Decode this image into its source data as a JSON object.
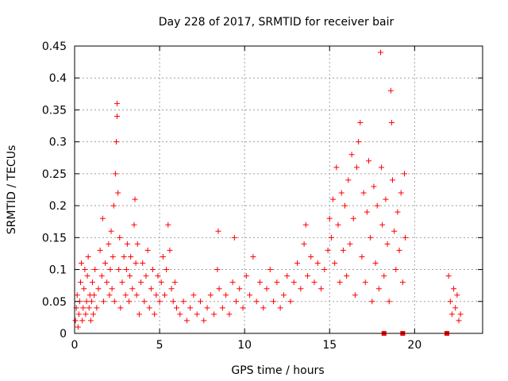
{
  "chart_data": {
    "type": "scatter",
    "title": "Day 228 of 2017, SRMTID for receiver bair",
    "xlabel": "GPS time / hours",
    "ylabel": "SRMTID / TECUs",
    "xlim": [
      0,
      24
    ],
    "ylim": [
      0,
      0.45
    ],
    "x_ticks": [
      0,
      5,
      10,
      15,
      20
    ],
    "x_tick_labels": [
      "0",
      "5",
      "10",
      "15",
      "20"
    ],
    "y_ticks": [
      0,
      0.05,
      0.1,
      0.15,
      0.2,
      0.25,
      0.3,
      0.35,
      0.4,
      0.45
    ],
    "y_tick_labels": [
      "0",
      "0.05",
      "0.1",
      "0.15",
      "0.2",
      "0.25",
      "0.3",
      "0.35",
      "0.4",
      "0.45"
    ],
    "grid": true,
    "legend": "none",
    "marker": "+",
    "color": "#ff0000",
    "series": [
      {
        "points": [
          [
            0.05,
            0.02
          ],
          [
            0.1,
            0.04
          ],
          [
            0.15,
            0.06
          ],
          [
            0.2,
            0.01
          ],
          [
            0.25,
            0.03
          ],
          [
            0.3,
            0.05
          ],
          [
            0.35,
            0.08
          ],
          [
            0.4,
            0.11
          ],
          [
            0.45,
            0.02
          ],
          [
            0.5,
            0.04
          ],
          [
            0.55,
            0.07
          ],
          [
            0.6,
            0.1
          ],
          [
            0.65,
            0.03
          ],
          [
            0.7,
            0.05
          ],
          [
            0.75,
            0.09
          ],
          [
            0.8,
            0.12
          ],
          [
            0.85,
            0.04
          ],
          [
            0.9,
            0.06
          ],
          [
            0.95,
            0.02
          ],
          [
            1.0,
            0.05
          ],
          [
            1.05,
            0.08
          ],
          [
            1.1,
            0.03
          ],
          [
            1.15,
            0.06
          ],
          [
            1.2,
            0.1
          ],
          [
            1.3,
            0.04
          ],
          [
            1.4,
            0.07
          ],
          [
            1.5,
            0.13
          ],
          [
            1.6,
            0.09
          ],
          [
            1.65,
            0.18
          ],
          [
            1.7,
            0.05
          ],
          [
            1.8,
            0.11
          ],
          [
            1.9,
            0.08
          ],
          [
            2.0,
            0.14
          ],
          [
            2.05,
            0.06
          ],
          [
            2.1,
            0.1
          ],
          [
            2.15,
            0.16
          ],
          [
            2.2,
            0.07
          ],
          [
            2.25,
            0.12
          ],
          [
            2.3,
            0.2
          ],
          [
            2.35,
            0.05
          ],
          [
            2.4,
            0.25
          ],
          [
            2.45,
            0.3
          ],
          [
            2.5,
            0.36
          ],
          [
            2.5,
            0.34
          ],
          [
            2.55,
            0.22
          ],
          [
            2.6,
            0.1
          ],
          [
            2.65,
            0.15
          ],
          [
            2.7,
            0.04
          ],
          [
            2.8,
            0.08
          ],
          [
            2.9,
            0.12
          ],
          [
            3.0,
            0.06
          ],
          [
            3.05,
            0.1
          ],
          [
            3.1,
            0.14
          ],
          [
            3.2,
            0.05
          ],
          [
            3.25,
            0.09
          ],
          [
            3.3,
            0.12
          ],
          [
            3.4,
            0.07
          ],
          [
            3.5,
            0.17
          ],
          [
            3.55,
            0.21
          ],
          [
            3.6,
            0.11
          ],
          [
            3.65,
            0.06
          ],
          [
            3.7,
            0.14
          ],
          [
            3.8,
            0.03
          ],
          [
            3.9,
            0.08
          ],
          [
            4.0,
            0.11
          ],
          [
            4.1,
            0.05
          ],
          [
            4.2,
            0.09
          ],
          [
            4.3,
            0.13
          ],
          [
            4.4,
            0.04
          ],
          [
            4.5,
            0.07
          ],
          [
            4.6,
            0.1
          ],
          [
            4.7,
            0.03
          ],
          [
            4.8,
            0.06
          ],
          [
            4.9,
            0.09
          ],
          [
            5.0,
            0.05
          ],
          [
            5.1,
            0.08
          ],
          [
            5.2,
            0.12
          ],
          [
            5.3,
            0.06
          ],
          [
            5.4,
            0.1
          ],
          [
            5.5,
            0.17
          ],
          [
            5.6,
            0.13
          ],
          [
            5.7,
            0.07
          ],
          [
            5.8,
            0.05
          ],
          [
            5.9,
            0.08
          ],
          [
            6.0,
            0.04
          ],
          [
            6.2,
            0.03
          ],
          [
            6.4,
            0.05
          ],
          [
            6.6,
            0.02
          ],
          [
            6.8,
            0.04
          ],
          [
            7.0,
            0.06
          ],
          [
            7.2,
            0.03
          ],
          [
            7.4,
            0.05
          ],
          [
            7.6,
            0.02
          ],
          [
            7.8,
            0.04
          ],
          [
            8.0,
            0.06
          ],
          [
            8.2,
            0.03
          ],
          [
            8.4,
            0.1
          ],
          [
            8.45,
            0.16
          ],
          [
            8.5,
            0.07
          ],
          [
            8.7,
            0.04
          ],
          [
            8.9,
            0.06
          ],
          [
            9.1,
            0.03
          ],
          [
            9.3,
            0.08
          ],
          [
            9.4,
            0.15
          ],
          [
            9.5,
            0.05
          ],
          [
            9.7,
            0.07
          ],
          [
            9.9,
            0.04
          ],
          [
            10.1,
            0.09
          ],
          [
            10.3,
            0.06
          ],
          [
            10.5,
            0.12
          ],
          [
            10.7,
            0.05
          ],
          [
            10.9,
            0.08
          ],
          [
            11.1,
            0.04
          ],
          [
            11.3,
            0.07
          ],
          [
            11.5,
            0.1
          ],
          [
            11.7,
            0.05
          ],
          [
            11.9,
            0.08
          ],
          [
            12.1,
            0.04
          ],
          [
            12.3,
            0.06
          ],
          [
            12.5,
            0.09
          ],
          [
            12.7,
            0.05
          ],
          [
            12.9,
            0.08
          ],
          [
            13.1,
            0.11
          ],
          [
            13.3,
            0.07
          ],
          [
            13.5,
            0.14
          ],
          [
            13.6,
            0.17
          ],
          [
            13.7,
            0.09
          ],
          [
            13.9,
            0.12
          ],
          [
            14.1,
            0.08
          ],
          [
            14.3,
            0.11
          ],
          [
            14.5,
            0.07
          ],
          [
            14.7,
            0.1
          ],
          [
            14.9,
            0.13
          ],
          [
            15.0,
            0.18
          ],
          [
            15.1,
            0.15
          ],
          [
            15.2,
            0.21
          ],
          [
            15.3,
            0.11
          ],
          [
            15.4,
            0.26
          ],
          [
            15.5,
            0.17
          ],
          [
            15.6,
            0.08
          ],
          [
            15.7,
            0.22
          ],
          [
            15.8,
            0.13
          ],
          [
            15.9,
            0.2
          ],
          [
            16.0,
            0.09
          ],
          [
            16.1,
            0.24
          ],
          [
            16.2,
            0.14
          ],
          [
            16.3,
            0.28
          ],
          [
            16.4,
            0.18
          ],
          [
            16.5,
            0.06
          ],
          [
            16.6,
            0.26
          ],
          [
            16.7,
            0.3
          ],
          [
            16.8,
            0.33
          ],
          [
            16.9,
            0.12
          ],
          [
            17.0,
            0.22
          ],
          [
            17.1,
            0.08
          ],
          [
            17.2,
            0.19
          ],
          [
            17.3,
            0.27
          ],
          [
            17.4,
            0.15
          ],
          [
            17.5,
            0.05
          ],
          [
            17.6,
            0.23
          ],
          [
            17.7,
            0.11
          ],
          [
            17.8,
            0.2
          ],
          [
            17.9,
            0.07
          ],
          [
            18.0,
            0.44
          ],
          [
            18.05,
            0.26
          ],
          [
            18.1,
            0.17
          ],
          [
            18.2,
            0.09
          ],
          [
            18.3,
            0.21
          ],
          [
            18.4,
            0.14
          ],
          [
            18.5,
            0.05
          ],
          [
            18.6,
            0.38
          ],
          [
            18.65,
            0.33
          ],
          [
            18.7,
            0.24
          ],
          [
            18.8,
            0.16
          ],
          [
            18.9,
            0.1
          ],
          [
            19.0,
            0.19
          ],
          [
            19.1,
            0.13
          ],
          [
            19.2,
            0.22
          ],
          [
            19.3,
            0.08
          ],
          [
            19.4,
            0.25
          ],
          [
            19.45,
            0.15
          ],
          [
            22.0,
            0.09
          ],
          [
            22.1,
            0.05
          ],
          [
            22.2,
            0.03
          ],
          [
            22.3,
            0.07
          ],
          [
            22.4,
            0.04
          ],
          [
            22.5,
            0.06
          ],
          [
            22.6,
            0.02
          ],
          [
            22.7,
            0.03
          ]
        ]
      }
    ],
    "filled_markers": [
      [
        18.2,
        0.0
      ],
      [
        19.3,
        0.0
      ],
      [
        21.9,
        0.0
      ]
    ]
  }
}
